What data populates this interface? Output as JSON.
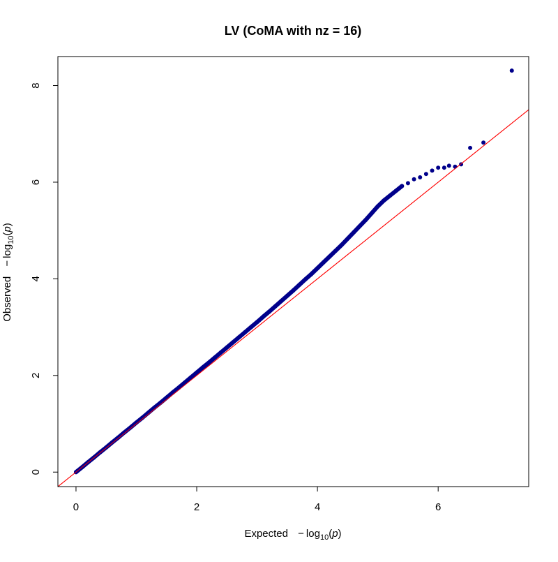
{
  "chart_data": {
    "type": "scatter",
    "title": "LV (CoMA with  nz = 16)",
    "xlabel": {
      "prefix": "Expected",
      "func": "log",
      "subscript": "10",
      "arg": "p"
    },
    "ylabel": {
      "prefix": "Observed",
      "func": "log",
      "subscript": "10",
      "arg": "p"
    },
    "xlim": [
      -0.3,
      7.5
    ],
    "ylim": [
      -0.3,
      8.6
    ],
    "xticks": [
      0,
      2,
      4,
      6
    ],
    "yticks": [
      0,
      2,
      4,
      6,
      8
    ],
    "reference_line": {
      "slope": 1,
      "intercept": 0,
      "color": "#ff0000"
    },
    "point_color": "#00008b",
    "grid": false,
    "series": [
      {
        "points": [
          [
            0.0,
            0.0
          ],
          [
            0.1,
            0.1
          ],
          [
            0.2,
            0.205
          ],
          [
            0.3,
            0.305
          ],
          [
            0.4,
            0.41
          ],
          [
            0.5,
            0.51
          ],
          [
            0.6,
            0.615
          ],
          [
            0.7,
            0.715
          ],
          [
            0.8,
            0.82
          ],
          [
            0.9,
            0.92
          ],
          [
            1.0,
            1.025
          ],
          [
            1.1,
            1.125
          ],
          [
            1.2,
            1.23
          ],
          [
            1.3,
            1.335
          ],
          [
            1.4,
            1.435
          ],
          [
            1.5,
            1.54
          ],
          [
            1.6,
            1.645
          ],
          [
            1.7,
            1.745
          ],
          [
            1.8,
            1.85
          ],
          [
            1.9,
            1.955
          ],
          [
            2.0,
            2.06
          ],
          [
            2.1,
            2.165
          ],
          [
            2.2,
            2.265
          ],
          [
            2.3,
            2.37
          ],
          [
            2.4,
            2.475
          ],
          [
            2.5,
            2.58
          ],
          [
            2.6,
            2.685
          ],
          [
            2.7,
            2.79
          ],
          [
            2.8,
            2.895
          ],
          [
            2.9,
            3.0
          ],
          [
            3.0,
            3.105
          ],
          [
            3.1,
            3.215
          ],
          [
            3.2,
            3.32
          ],
          [
            3.3,
            3.43
          ],
          [
            3.4,
            3.54
          ],
          [
            3.5,
            3.65
          ],
          [
            3.6,
            3.76
          ],
          [
            3.7,
            3.875
          ],
          [
            3.8,
            3.99
          ],
          [
            3.9,
            4.1
          ],
          [
            4.0,
            4.22
          ],
          [
            4.1,
            4.34
          ],
          [
            4.2,
            4.46
          ],
          [
            4.3,
            4.58
          ],
          [
            4.4,
            4.7
          ],
          [
            4.5,
            4.83
          ],
          [
            4.6,
            4.96
          ],
          [
            4.7,
            5.09
          ],
          [
            4.8,
            5.22
          ],
          [
            4.9,
            5.36
          ],
          [
            5.0,
            5.5
          ],
          [
            5.1,
            5.62
          ],
          [
            5.2,
            5.72
          ],
          [
            5.3,
            5.82
          ],
          [
            5.4,
            5.92
          ],
          [
            5.5,
            5.98
          ],
          [
            5.6,
            6.06
          ],
          [
            5.7,
            6.1
          ],
          [
            5.8,
            6.17
          ],
          [
            5.9,
            6.24
          ],
          [
            6.0,
            6.3
          ],
          [
            6.1,
            6.3
          ],
          [
            6.18,
            6.34
          ],
          [
            6.28,
            6.32
          ],
          [
            6.38,
            6.37
          ],
          [
            6.53,
            6.71
          ],
          [
            6.75,
            6.82
          ],
          [
            7.22,
            8.31
          ]
        ]
      }
    ]
  }
}
